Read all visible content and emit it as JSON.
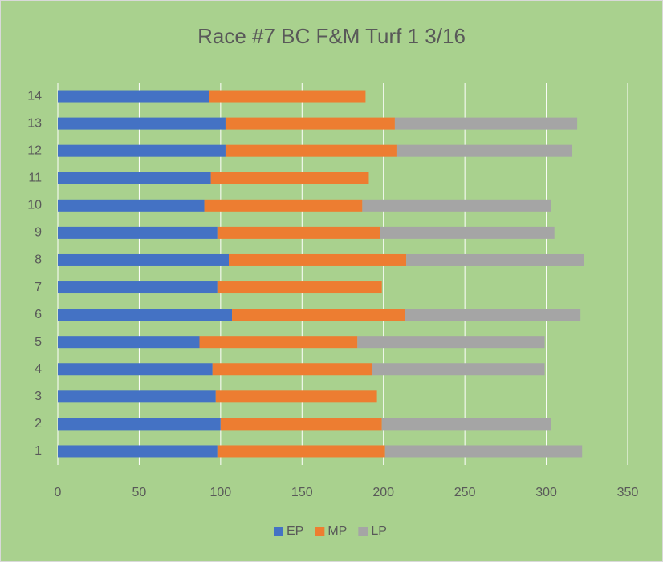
{
  "chart_data": {
    "type": "stacked_barh",
    "title": "Race #7 BC F&M Turf 1 3/16",
    "categories": [
      "1",
      "2",
      "3",
      "4",
      "5",
      "6",
      "7",
      "8",
      "9",
      "10",
      "11",
      "12",
      "13",
      "14"
    ],
    "series": [
      {
        "name": "EP",
        "color": "#4472c4",
        "values": [
          98,
          100,
          97,
          95,
          87,
          107,
          98,
          105,
          98,
          90,
          94,
          103,
          103,
          93
        ]
      },
      {
        "name": "MP",
        "color": "#ed7d31",
        "values": [
          103,
          99,
          99,
          98,
          97,
          106,
          101,
          109,
          100,
          97,
          97,
          105,
          104,
          96
        ]
      },
      {
        "name": "LP",
        "color": "#a5a5a5",
        "values": [
          121,
          104,
          0,
          106,
          115,
          108,
          0,
          109,
          107,
          116,
          0,
          108,
          112,
          0
        ]
      }
    ],
    "xlim": [
      0,
      350
    ],
    "xticks": [
      0,
      50,
      100,
      150,
      200,
      250,
      300,
      350
    ],
    "grid": true,
    "legend": "bottom"
  }
}
